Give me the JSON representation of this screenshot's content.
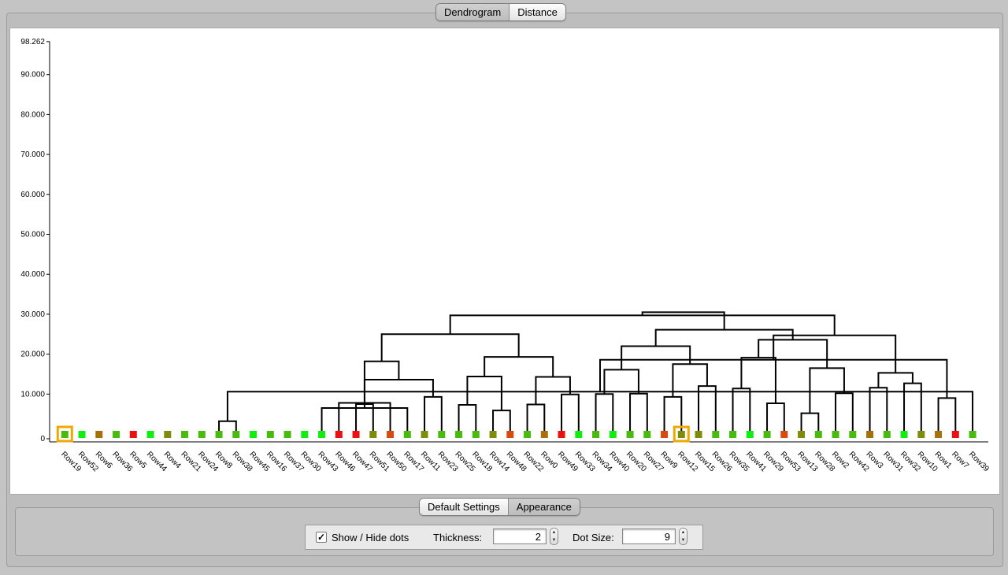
{
  "top_tabs": [
    {
      "label": "Dendrogram",
      "selected": true
    },
    {
      "label": "Distance",
      "selected": false
    }
  ],
  "bottom_tabs": [
    {
      "label": "Default Settings",
      "selected": false
    },
    {
      "label": "Appearance",
      "selected": true
    }
  ],
  "controls": {
    "show_hide_dots_label": "Show / Hide dots",
    "show_hide_dots_checked": true,
    "check_mark": "✓",
    "thickness_label": "Thickness:",
    "thickness_value": "2",
    "dot_size_label": "Dot Size:",
    "dot_size_value": "9"
  },
  "colors": {
    "highlight": "#f0a800",
    "bright_green": "#10ee10",
    "green": "#49ba0e",
    "olive": "#7e8c0c",
    "brown": "#a8700a",
    "red": "#ee1010",
    "orange_red": "#d84a10",
    "line": "#000000"
  },
  "chart_data": {
    "type": "dendrogram",
    "y_tick_labels": [
      "0",
      "10.000",
      "20.000",
      "30.000",
      "40.000",
      "50.000",
      "60.000",
      "70.000",
      "80.000",
      "90.000",
      "98.262"
    ],
    "y_ticks": [
      0,
      10,
      20,
      30,
      40,
      50,
      60,
      70,
      80,
      90,
      98.262
    ],
    "ylim": [
      0,
      98.262
    ],
    "leaves": [
      {
        "label": "Row19",
        "color": "green",
        "highlighted": true
      },
      {
        "label": "Row52",
        "color": "bright_green"
      },
      {
        "label": "Row6",
        "color": "brown"
      },
      {
        "label": "Row36",
        "color": "green"
      },
      {
        "label": "Row5",
        "color": "red"
      },
      {
        "label": "Row44",
        "color": "bright_green"
      },
      {
        "label": "Row4",
        "color": "olive"
      },
      {
        "label": "Row21",
        "color": "green"
      },
      {
        "label": "Row24",
        "color": "green"
      },
      {
        "label": "Row8",
        "color": "green"
      },
      {
        "label": "Row38",
        "color": "green"
      },
      {
        "label": "Row45",
        "color": "bright_green"
      },
      {
        "label": "Row16",
        "color": "green"
      },
      {
        "label": "Row37",
        "color": "green"
      },
      {
        "label": "Row30",
        "color": "bright_green"
      },
      {
        "label": "Row43",
        "color": "bright_green"
      },
      {
        "label": "Row46",
        "color": "red"
      },
      {
        "label": "Row47",
        "color": "red"
      },
      {
        "label": "Row51",
        "color": "olive"
      },
      {
        "label": "Row50",
        "color": "orange_red"
      },
      {
        "label": "Row17",
        "color": "green"
      },
      {
        "label": "Row11",
        "color": "olive"
      },
      {
        "label": "Row23",
        "color": "green"
      },
      {
        "label": "Row25",
        "color": "green"
      },
      {
        "label": "Row18",
        "color": "green"
      },
      {
        "label": "Row14",
        "color": "olive"
      },
      {
        "label": "Row48",
        "color": "orange_red"
      },
      {
        "label": "Row22",
        "color": "green"
      },
      {
        "label": "Row0",
        "color": "brown"
      },
      {
        "label": "Row49",
        "color": "red"
      },
      {
        "label": "Row33",
        "color": "bright_green"
      },
      {
        "label": "Row34",
        "color": "green"
      },
      {
        "label": "Row40",
        "color": "bright_green"
      },
      {
        "label": "Row20",
        "color": "green"
      },
      {
        "label": "Row27",
        "color": "green"
      },
      {
        "label": "Row9",
        "color": "orange_red"
      },
      {
        "label": "Row12",
        "color": "olive",
        "highlighted": true
      },
      {
        "label": "Row15",
        "color": "olive"
      },
      {
        "label": "Row26",
        "color": "green"
      },
      {
        "label": "Row35",
        "color": "green"
      },
      {
        "label": "Row41",
        "color": "bright_green"
      },
      {
        "label": "Row29",
        "color": "green"
      },
      {
        "label": "Row53",
        "color": "orange_red"
      },
      {
        "label": "Row13",
        "color": "olive"
      },
      {
        "label": "Row28",
        "color": "green"
      },
      {
        "label": "Row2",
        "color": "green"
      },
      {
        "label": "Row42",
        "color": "green"
      },
      {
        "label": "Row3",
        "color": "brown"
      },
      {
        "label": "Row31",
        "color": "green"
      },
      {
        "label": "Row32",
        "color": "bright_green"
      },
      {
        "label": "Row10",
        "color": "olive"
      },
      {
        "label": "Row1",
        "color": "brown"
      },
      {
        "label": "Row7",
        "color": "red"
      },
      {
        "label": "Row39",
        "color": "green"
      }
    ],
    "merges": [
      [
        9,
        10,
        3.2
      ],
      [
        17,
        18,
        7.5
      ],
      [
        16,
        19,
        7.8
      ],
      [
        15,
        20,
        6.5
      ],
      [
        21,
        22,
        9.3
      ],
      [
        23,
        24,
        7.3
      ],
      [
        25,
        26,
        5.9
      ],
      [
        27,
        28,
        7.4
      ],
      [
        29,
        30,
        9.9
      ],
      [
        31,
        32,
        10.0
      ],
      [
        33,
        34,
        10.1
      ],
      [
        35,
        36,
        9.3
      ],
      [
        37,
        38,
        12.0
      ],
      [
        39,
        40,
        11.4
      ],
      [
        41,
        42,
        7.7
      ],
      [
        43,
        44,
        5.2
      ],
      [
        45,
        46,
        10.2
      ],
      [
        47,
        48,
        11.6
      ],
      [
        49,
        50,
        12.7
      ],
      [
        51,
        52,
        9.0
      ],
      [
        53,
        54,
        10.6
      ],
      [
        55,
        56,
        12.9
      ],
      [
        57,
        58,
        13.6
      ],
      [
        59,
        60,
        14.4
      ],
      [
        61,
        62,
        14.3
      ],
      [
        63,
        64,
        16.1
      ],
      [
        65,
        66,
        17.5
      ],
      [
        67,
        68,
        19.1
      ],
      [
        69,
        70,
        16.5
      ],
      [
        71,
        72,
        15.3
      ],
      [
        73,
        74,
        18.6
      ],
      [
        75,
        76,
        18.2
      ],
      [
        77,
        78,
        19.3
      ],
      [
        79,
        80,
        22.0
      ],
      [
        81,
        82,
        23.6
      ],
      [
        83,
        84,
        24.7
      ],
      [
        85,
        86,
        25.0
      ],
      [
        87,
        88,
        26.1
      ],
      [
        89,
        90,
        29.7
      ],
      [
        91,
        92,
        30.5
      ]
    ]
  }
}
